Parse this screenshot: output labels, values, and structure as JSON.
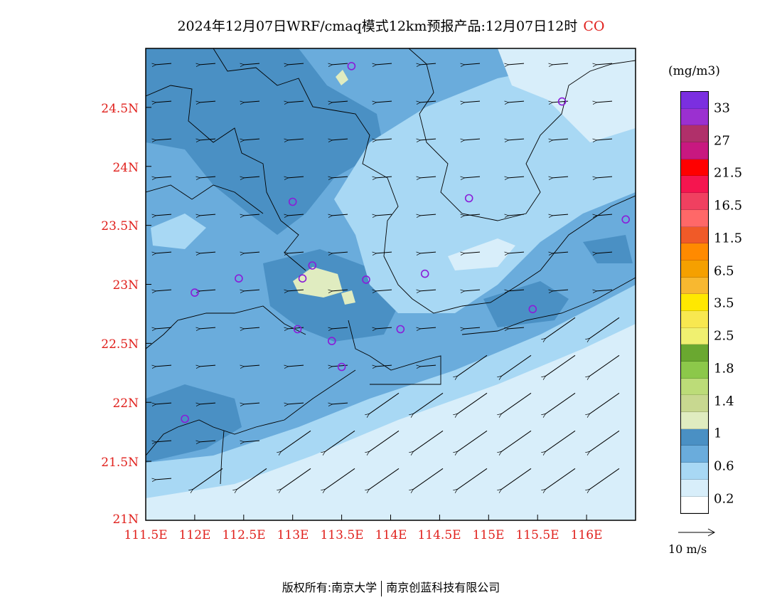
{
  "title": {
    "text": "2024年12月07日WRF/cmaq模式12km预报产品:12月07日12时",
    "species": "CO"
  },
  "axes": {
    "lat_labels": [
      "21N",
      "21.5N",
      "22N",
      "22.5N",
      "23N",
      "23.5N",
      "24N",
      "24.5N"
    ],
    "lon_labels": [
      "111.5E",
      "112E",
      "112.5E",
      "113E",
      "113.5E",
      "114E",
      "114.5E",
      "115E",
      "115.5E",
      "116E"
    ],
    "lon_range": [
      111.5,
      116.5
    ],
    "lat_range": [
      21.0,
      25.0
    ]
  },
  "legend": {
    "unit": "(mg/m3)",
    "labels": [
      "33",
      "27",
      "21.5",
      "16.5",
      "11.5",
      "6.5",
      "3.5",
      "2.5",
      "1.8",
      "1.4",
      "1",
      "0.6",
      "0.2"
    ],
    "colors_top_to_bottom": [
      "#7b2fe0",
      "#9b30d0",
      "#b0306a",
      "#c81880",
      "#ff0000",
      "#f5154f",
      "#f04060",
      "#ff6868",
      "#f05a28",
      "#ff8a00",
      "#f5a000",
      "#f8b830",
      "#ffe800",
      "#f8e850",
      "#f0f070",
      "#6aa830",
      "#8cc84a",
      "#bcdc78",
      "#c8d890",
      "#e0ecc0",
      "#4a90c4",
      "#6aacdc",
      "#a8d8f4",
      "#d8eefa",
      "#ffffff"
    ],
    "wind_reference": "10 m/s"
  },
  "stations": [
    {
      "lon": 113.6,
      "lat": 24.85
    },
    {
      "lon": 115.75,
      "lat": 24.55
    },
    {
      "lon": 113.0,
      "lat": 23.7
    },
    {
      "lon": 114.8,
      "lat": 23.73
    },
    {
      "lon": 116.4,
      "lat": 23.55
    },
    {
      "lon": 112.45,
      "lat": 23.05
    },
    {
      "lon": 112.0,
      "lat": 22.93
    },
    {
      "lon": 113.1,
      "lat": 23.05
    },
    {
      "lon": 113.2,
      "lat": 23.16
    },
    {
      "lon": 113.75,
      "lat": 23.04
    },
    {
      "lon": 114.35,
      "lat": 23.09
    },
    {
      "lon": 115.45,
      "lat": 22.79
    },
    {
      "lon": 113.05,
      "lat": 22.62
    },
    {
      "lon": 113.4,
      "lat": 22.52
    },
    {
      "lon": 113.5,
      "lat": 22.3
    },
    {
      "lon": 114.1,
      "lat": 22.62
    },
    {
      "lon": 111.9,
      "lat": 21.86
    }
  ],
  "footer": {
    "left": "版权所有:南京大学",
    "right": "南京创蓝科技有限公司"
  }
}
